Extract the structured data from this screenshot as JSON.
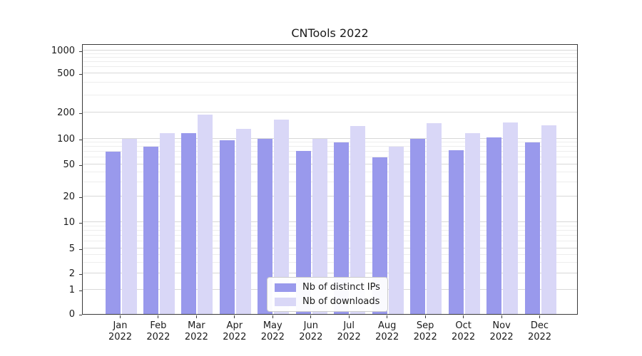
{
  "chart_data": {
    "type": "bar",
    "title": "CNTools 2022",
    "categories": [
      "Jan 2022",
      "Feb 2022",
      "Mar 2022",
      "Apr 2022",
      "May 2022",
      "Jun 2022",
      "Jul 2022",
      "Aug 2022",
      "Sep 2022",
      "Oct 2022",
      "Nov 2022",
      "Dec 2022"
    ],
    "series": [
      {
        "name": "Nb of distinct IPs",
        "color": "#9999ec",
        "values": [
          70,
          80,
          115,
          95,
          100,
          72,
          90,
          60,
          100,
          73,
          103,
          90
        ]
      },
      {
        "name": "Nb of downloads",
        "color": "#d9d7f7",
        "values": [
          100,
          115,
          190,
          130,
          165,
          100,
          140,
          80,
          150,
          115,
          155,
          142
        ]
      }
    ],
    "xlabel": "",
    "ylabel": "",
    "yscale": "symlog",
    "ylim": [
      0,
      1000
    ],
    "yticks": [
      0,
      1,
      2,
      5,
      10,
      20,
      50,
      100,
      200,
      500,
      1000
    ],
    "minor_yticks": [
      3,
      4,
      6,
      7,
      8,
      9,
      30,
      40,
      60,
      70,
      80,
      90,
      300,
      400,
      600,
      700,
      800,
      900
    ],
    "grid": "horizontal",
    "legend": {
      "position": "lower center"
    }
  }
}
